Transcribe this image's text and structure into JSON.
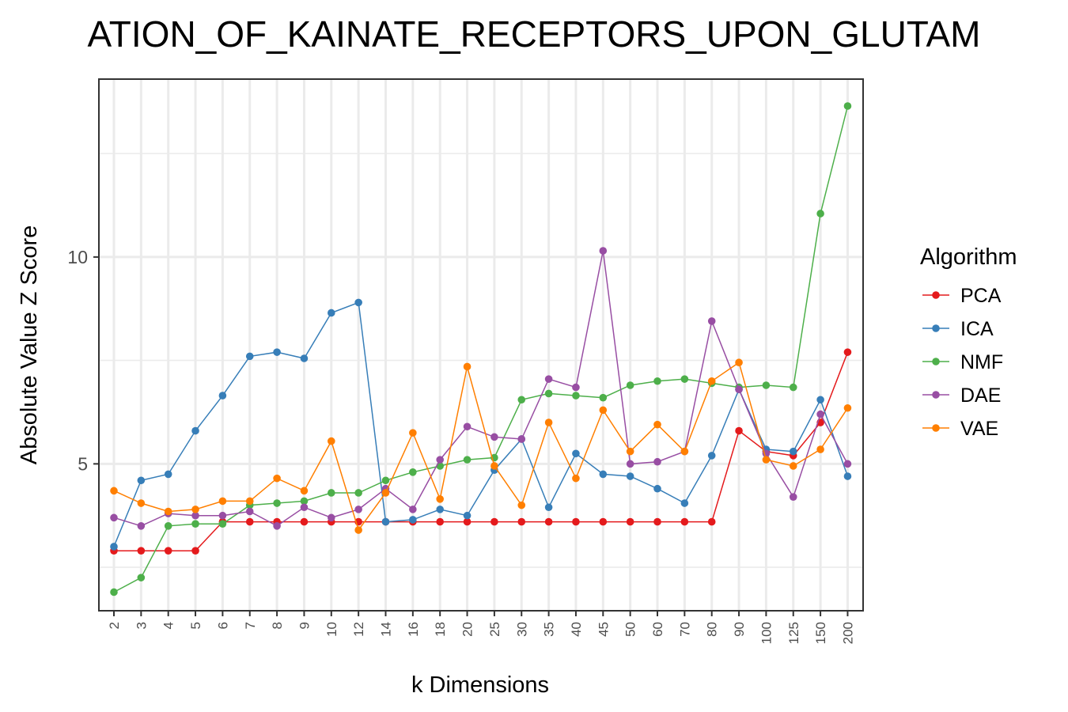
{
  "chart_data": {
    "type": "line",
    "title": "ATION_OF_KAINATE_RECEPTORS_UPON_GLUTAM",
    "xlabel": "k Dimensions",
    "ylabel": "Absolute Value Z Score",
    "categories": [
      "2",
      "3",
      "4",
      "5",
      "6",
      "7",
      "8",
      "9",
      "10",
      "12",
      "14",
      "16",
      "18",
      "20",
      "25",
      "30",
      "35",
      "40",
      "45",
      "50",
      "60",
      "70",
      "80",
      "90",
      "100",
      "125",
      "150",
      "200"
    ],
    "yticks": [
      5,
      10
    ],
    "ylim": [
      1.45,
      14.3
    ],
    "grid": true,
    "legend": {
      "title": "Algorithm",
      "position": "right"
    },
    "series": [
      {
        "name": "PCA",
        "color": "#e41a1c",
        "values": [
          2.9,
          2.9,
          2.9,
          2.9,
          3.6,
          3.6,
          3.6,
          3.6,
          3.6,
          3.6,
          3.6,
          3.6,
          3.6,
          3.6,
          3.6,
          3.6,
          3.6,
          3.6,
          3.6,
          3.6,
          3.6,
          3.6,
          3.6,
          5.8,
          5.3,
          5.2,
          6.0,
          7.7
        ]
      },
      {
        "name": "ICA",
        "color": "#377eb8",
        "values": [
          3.0,
          4.6,
          4.75,
          5.8,
          6.65,
          7.6,
          7.7,
          7.55,
          8.65,
          8.9,
          3.6,
          3.65,
          3.9,
          3.75,
          4.85,
          5.6,
          3.95,
          5.25,
          4.75,
          4.7,
          4.4,
          4.05,
          5.2,
          6.8,
          5.35,
          5.3,
          6.55,
          4.7
        ]
      },
      {
        "name": "NMF",
        "color": "#4daf4a",
        "values": [
          1.9,
          2.25,
          3.5,
          3.55,
          3.55,
          4.0,
          4.05,
          4.1,
          4.3,
          4.3,
          4.6,
          4.8,
          4.95,
          5.1,
          5.15,
          6.55,
          6.7,
          6.65,
          6.6,
          6.9,
          7.0,
          7.05,
          6.95,
          6.85,
          6.9,
          6.85,
          11.05,
          13.65
        ]
      },
      {
        "name": "DAE",
        "color": "#984ea3",
        "values": [
          3.7,
          3.5,
          3.8,
          3.75,
          3.75,
          3.85,
          3.5,
          3.95,
          3.7,
          3.9,
          4.4,
          3.9,
          5.1,
          5.9,
          5.65,
          5.6,
          7.05,
          6.85,
          10.15,
          5.0,
          5.05,
          5.3,
          8.45,
          6.8,
          5.25,
          4.2,
          6.2,
          5.0
        ]
      },
      {
        "name": "VAE",
        "color": "#ff7f00",
        "values": [
          4.35,
          4.05,
          3.85,
          3.9,
          4.1,
          4.1,
          4.65,
          4.35,
          5.55,
          3.4,
          4.3,
          5.75,
          4.15,
          7.35,
          4.95,
          4.0,
          6.0,
          4.65,
          6.3,
          5.3,
          5.95,
          5.3,
          7.0,
          7.45,
          5.1,
          4.95,
          5.35,
          6.35
        ]
      }
    ]
  }
}
